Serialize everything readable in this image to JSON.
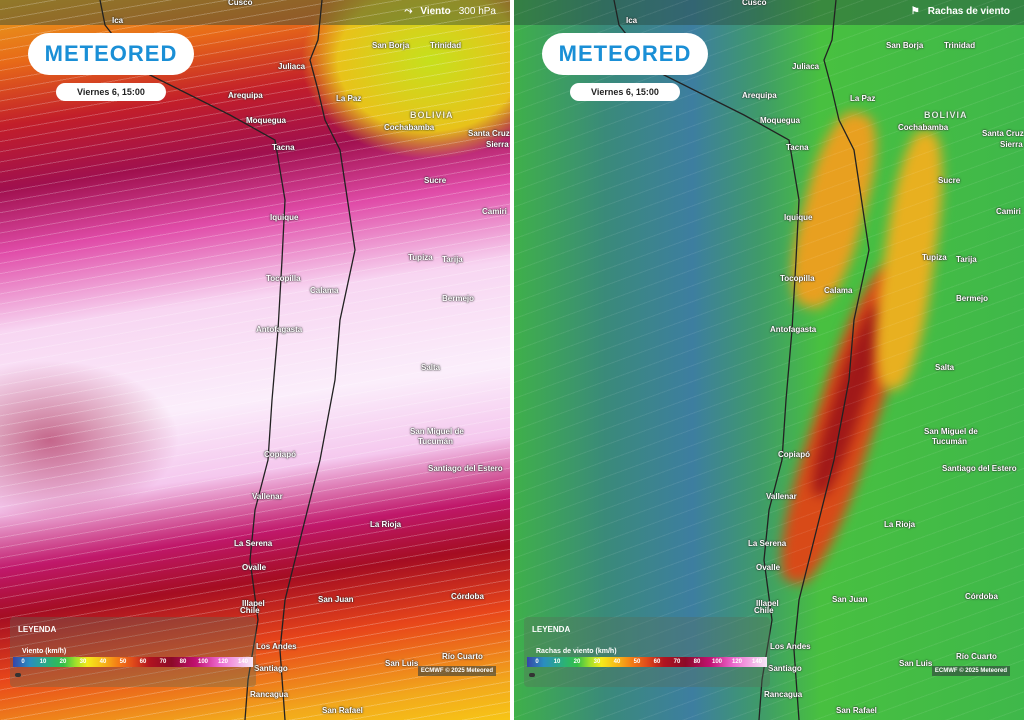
{
  "panels": [
    {
      "layer_icon": "wind-icon",
      "layer": "Viento",
      "level": "300 hPa",
      "logo": "METEORED",
      "date": "Viernes 6, 15:00",
      "legend_title": "LEYENDA",
      "legend_unit": "Viento (km/h)",
      "copyright": "ECMWF © 2025 Meteored"
    },
    {
      "layer_icon": "gust-flag-icon",
      "layer": "Rachas de viento",
      "logo": "METEORED",
      "date": "Viernes 6, 15:00",
      "legend_title": "LEYENDA",
      "legend_unit": "Rachas de viento (km/h)",
      "copyright": "ECMWF © 2025 Meteored"
    }
  ],
  "scale": [
    "0",
    "10",
    "20",
    "30",
    "40",
    "50",
    "60",
    "70",
    "80",
    "100",
    "120",
    "140"
  ],
  "cities": [
    "Ica",
    "Cusco",
    "San Borja",
    "Trinidad",
    "Juliaca",
    "Arequipa",
    "La Paz",
    "BOLIVIA",
    "Moquegua",
    "Cochabamba",
    "Santa Cruz",
    "Sierra",
    "Tacna",
    "Sucre",
    "Camiri",
    "Iquique",
    "Tupiza",
    "Tarija",
    "Tocopilla",
    "Calama",
    "Bermejo",
    "Antofagasta",
    "Salta",
    "San Miguel de",
    "Tucumán",
    "Santiago del Estero",
    "Copiapó",
    "Vallenar",
    "La Rioja",
    "La Serena",
    "Ovalle",
    "Córdoba",
    "Illapel",
    "San Juan",
    "Chile",
    "Los Andes",
    "Río Cuarto",
    "San Luis",
    "Santiago",
    "Rancagua",
    "San Rafael"
  ],
  "colors": {
    "brand": "#1a8fd6"
  }
}
